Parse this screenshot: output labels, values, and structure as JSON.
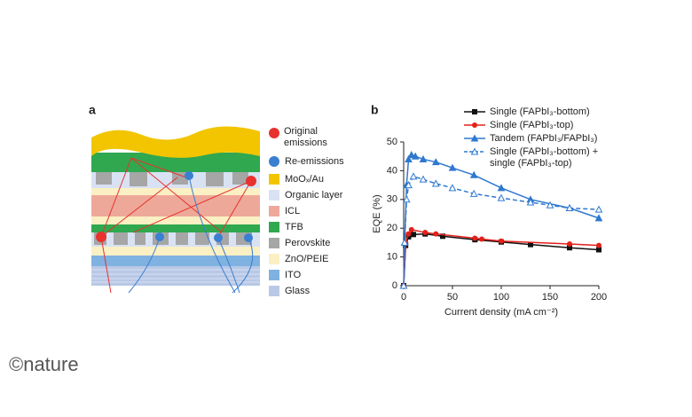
{
  "panel_a": {
    "label": "a",
    "legend": [
      {
        "name": "Original emissions",
        "color": "#e8322d"
      },
      {
        "name": "Re-emissions",
        "color": "#3a7fd0"
      },
      {
        "name": "MoOₓ/Au",
        "color": "#f2c500"
      },
      {
        "name": "Organic layer",
        "color": "#d9e2f3"
      },
      {
        "name": "ICL",
        "color": "#eea899"
      },
      {
        "name": "TFB",
        "color": "#2fa84f"
      },
      {
        "name": "Perovskite",
        "color": "#a6a6a6"
      },
      {
        "name": "ZnO/PEIE",
        "color": "#fbefc4"
      },
      {
        "name": "ITO",
        "color": "#7fb2e0"
      },
      {
        "name": "Glass",
        "color": "#b9c8e6"
      }
    ]
  },
  "panel_b_label": "b",
  "credit": "©nature",
  "chart_data": {
    "type": "line",
    "xlabel": "Current density (mA cm⁻²)",
    "ylabel": "EQE (%)",
    "xlim": [
      0,
      200
    ],
    "xticks": [
      0,
      50,
      100,
      150,
      200
    ],
    "ylim": [
      0,
      50
    ],
    "yticks": [
      0,
      10,
      20,
      30,
      40,
      50
    ],
    "series": [
      {
        "name": "Single (FAPbI₃-bottom)",
        "color": "#111111",
        "marker": "square",
        "dashed": false,
        "x": [
          0,
          2,
          5,
          10,
          22,
          40,
          73,
          100,
          130,
          170,
          200
        ],
        "values": [
          0,
          14,
          17,
          17.8,
          18,
          17.2,
          16,
          15.2,
          14.3,
          13.2,
          12.5
        ]
      },
      {
        "name": "Single (FAPbI₃-top)",
        "color": "#e3201b",
        "marker": "circle",
        "dashed": false,
        "x": [
          0,
          2,
          5,
          8,
          22,
          33,
          73,
          80,
          100,
          170,
          200
        ],
        "values": [
          0,
          15,
          18,
          19.5,
          18.5,
          18,
          16.5,
          16.2,
          15.5,
          14.5,
          14
        ]
      },
      {
        "name": "Tandem (FAPbI₃/FAPbI₃)",
        "color": "#2f78cf",
        "marker": "triangle",
        "dashed": false,
        "x": [
          0,
          1,
          3,
          5,
          8,
          12,
          20,
          33,
          50,
          72,
          100,
          130,
          170,
          200
        ],
        "values": [
          0,
          15,
          35,
          44,
          45.5,
          45,
          44,
          43,
          41,
          38.5,
          34,
          30,
          27,
          23.5
        ]
      },
      {
        "name": "Single (FAPbI₃-bottom) + single (FAPbI₃-top)",
        "color": "#2f78cf",
        "marker": "open-triangle",
        "dashed": true,
        "x": [
          0,
          1,
          3,
          5,
          10,
          20,
          33,
          50,
          72,
          100,
          130,
          150,
          170,
          200
        ],
        "values": [
          0,
          15,
          30,
          35,
          38,
          37,
          35.5,
          34,
          32,
          30.5,
          29,
          28,
          27,
          26.5
        ]
      }
    ]
  }
}
